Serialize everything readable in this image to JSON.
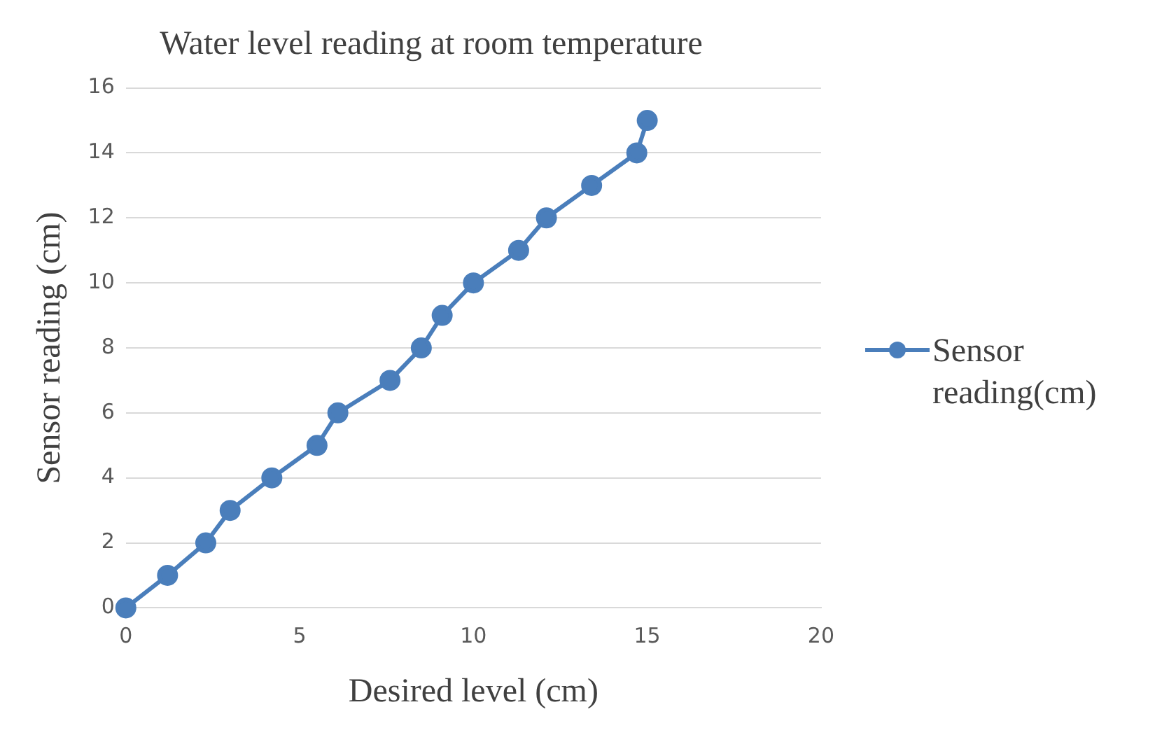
{
  "chart_data": {
    "type": "line",
    "title": "Water level reading at room temperature",
    "xlabel": "Desired level (cm)",
    "ylabel": "Sensor reading (cm)",
    "series": [
      {
        "name": "Sensor reading(cm)",
        "color": "#4a7ebb",
        "x": [
          0,
          1.2,
          2.3,
          3,
          4.2,
          5.5,
          6.1,
          7.6,
          8.5,
          9.1,
          10,
          11.3,
          12.1,
          13.4,
          14.7,
          15
        ],
        "values": [
          0,
          1,
          2,
          3,
          4,
          5,
          6,
          7,
          8,
          9,
          10,
          11,
          12,
          13,
          14,
          15
        ]
      }
    ],
    "xlim": [
      0,
      20
    ],
    "xticks": [
      0,
      5,
      10,
      15,
      20
    ],
    "ylim": [
      0,
      16
    ],
    "yticks": [
      0,
      2,
      4,
      6,
      8,
      10,
      12,
      14,
      16
    ],
    "grid": "y",
    "legend": "right",
    "marker": "circle",
    "line_style": "solid"
  }
}
